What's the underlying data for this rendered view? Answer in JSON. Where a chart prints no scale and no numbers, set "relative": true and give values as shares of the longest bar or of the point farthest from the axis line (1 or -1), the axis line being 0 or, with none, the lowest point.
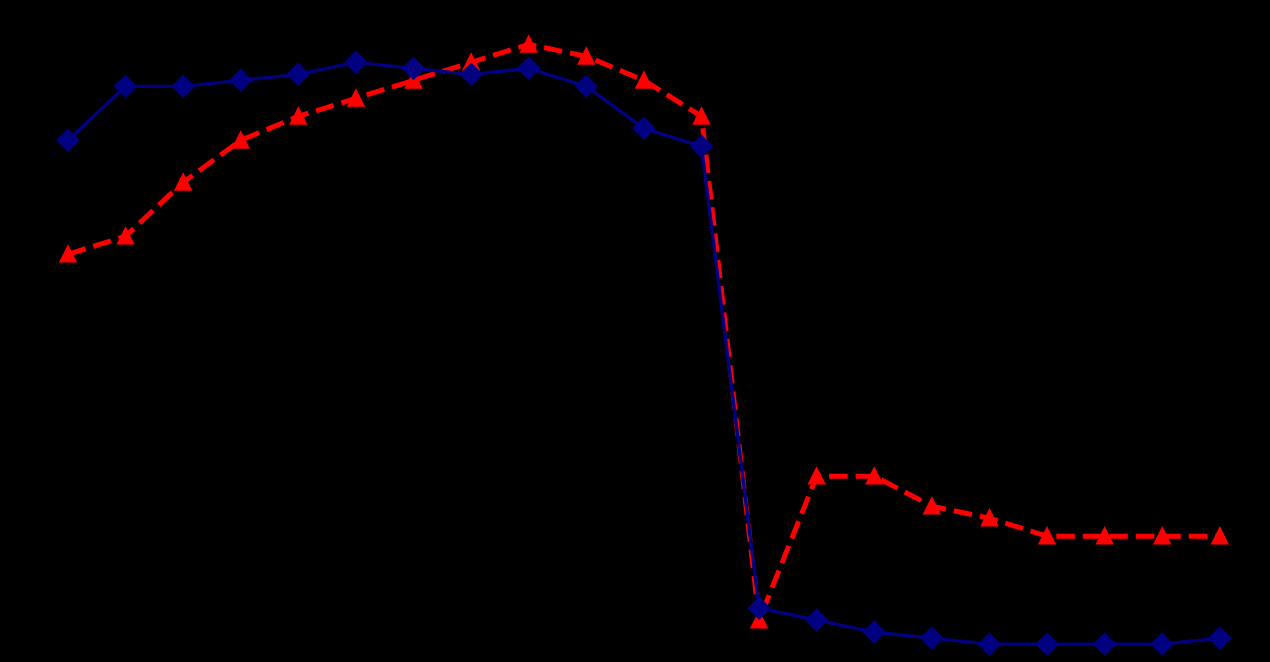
{
  "chart_data": {
    "type": "line",
    "relative": true,
    "categories": [
      null,
      null,
      null,
      null,
      null,
      null,
      null,
      null,
      null,
      null,
      null,
      null,
      null,
      null,
      null,
      null,
      null,
      null,
      null,
      null,
      null
    ],
    "series": [
      {
        "color": "#000080",
        "marker": "diamond",
        "line_style": "solid",
        "values": [
          0.84,
          0.93,
          0.93,
          0.94,
          0.95,
          0.97,
          0.96,
          0.95,
          0.96,
          0.93,
          0.86,
          0.83,
          0.06,
          0.04,
          0.02,
          0.01,
          0.0,
          0.0,
          0.0,
          0.0,
          0.01
        ]
      },
      {
        "color": "#ff0000",
        "marker": "triangle",
        "line_style": "dashed",
        "values": [
          0.65,
          0.68,
          0.77,
          0.84,
          0.88,
          0.91,
          0.94,
          0.97,
          1.0,
          0.98,
          0.94,
          0.88,
          0.04,
          0.28,
          0.28,
          0.23,
          0.21,
          0.18,
          0.18,
          0.18,
          0.18
        ]
      }
    ]
  }
}
